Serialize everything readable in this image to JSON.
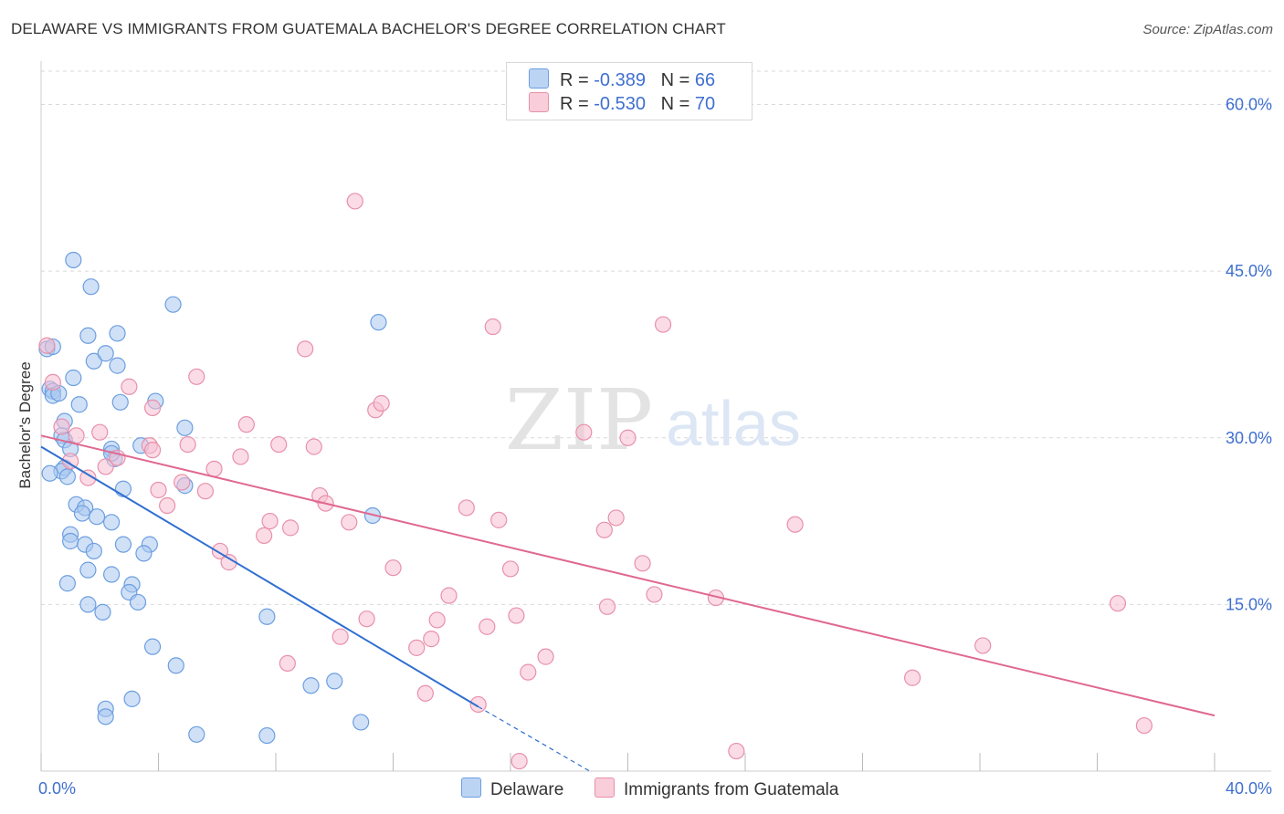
{
  "header": {
    "title": "DELAWARE VS IMMIGRANTS FROM GUATEMALA BACHELOR'S DEGREE CORRELATION CHART",
    "source": "Source: ZipAtlas.com"
  },
  "legend": {
    "rows": [
      {
        "r_label": "R =",
        "r_value": "-0.389",
        "n_label": "N =",
        "n_value": "66"
      },
      {
        "r_label": "R =",
        "r_value": "-0.530",
        "n_label": "N =",
        "n_value": "70"
      }
    ],
    "bottom": [
      "Delaware",
      "Immigrants from Guatemala"
    ]
  },
  "watermark": {
    "zip": "ZIP",
    "atlas": "atlas"
  },
  "colors": {
    "delaware_fill": "#a9c8f0",
    "delaware_stroke": "#6c9ee0",
    "delaware_line": "#2f6fd0",
    "guatemala_fill": "#f7c0d1",
    "guatemala_stroke": "#e890ab",
    "guatemala_line": "#e06890",
    "axis_text": "#3f6fd0",
    "grid": "#d9d9d9"
  },
  "chart_data": {
    "type": "scatter",
    "title": "DELAWARE VS IMMIGRANTS FROM GUATEMALA BACHELOR'S DEGREE CORRELATION CHART",
    "xlabel": "",
    "ylabel": "Bachelor's Degree",
    "xlim": [
      0,
      40
    ],
    "ylim": [
      0,
      63
    ],
    "x_tick_labels": [
      "0.0%",
      "40.0%"
    ],
    "y_ticks": [
      15,
      30,
      45,
      60
    ],
    "y_tick_labels": [
      "15.0%",
      "30.0%",
      "45.0%",
      "60.0%"
    ],
    "grid": true,
    "legend_position": "top-center",
    "series": [
      {
        "name": "Delaware",
        "r": -0.389,
        "n": 66,
        "trend": {
          "x": [
            0,
            14.9
          ],
          "y": [
            29.2,
            5.8
          ]
        },
        "trend_dashed": {
          "x": [
            14.9,
            18.7
          ],
          "y": [
            5.8,
            0
          ]
        },
        "points": [
          [
            0.2,
            38.0
          ],
          [
            0.4,
            38.2
          ],
          [
            0.3,
            34.4
          ],
          [
            0.4,
            34.2
          ],
          [
            0.4,
            33.8
          ],
          [
            0.8,
            31.5
          ],
          [
            0.7,
            30.2
          ],
          [
            0.8,
            29.8
          ],
          [
            1.0,
            29.0
          ],
          [
            0.8,
            27.3
          ],
          [
            0.7,
            27.0
          ],
          [
            0.3,
            26.8
          ],
          [
            0.9,
            26.5
          ],
          [
            1.1,
            35.4
          ],
          [
            1.3,
            33.0
          ],
          [
            1.6,
            39.2
          ],
          [
            1.8,
            36.9
          ],
          [
            2.2,
            37.6
          ],
          [
            2.6,
            36.5
          ],
          [
            2.6,
            39.4
          ],
          [
            2.7,
            33.2
          ],
          [
            3.9,
            33.3
          ],
          [
            2.4,
            29.0
          ],
          [
            3.4,
            29.3
          ],
          [
            2.5,
            28.1
          ],
          [
            2.8,
            25.4
          ],
          [
            4.9,
            25.7
          ],
          [
            1.2,
            24.0
          ],
          [
            1.5,
            23.7
          ],
          [
            1.4,
            23.2
          ],
          [
            1.9,
            22.9
          ],
          [
            2.4,
            22.4
          ],
          [
            1.0,
            21.3
          ],
          [
            1.0,
            20.7
          ],
          [
            1.5,
            20.4
          ],
          [
            1.8,
            19.8
          ],
          [
            2.8,
            20.4
          ],
          [
            3.7,
            20.4
          ],
          [
            3.5,
            19.6
          ],
          [
            1.6,
            18.1
          ],
          [
            2.4,
            17.7
          ],
          [
            0.9,
            16.9
          ],
          [
            3.1,
            16.8
          ],
          [
            3.0,
            16.1
          ],
          [
            3.3,
            15.2
          ],
          [
            1.6,
            15.0
          ],
          [
            2.1,
            14.3
          ],
          [
            7.7,
            13.9
          ],
          [
            3.8,
            11.2
          ],
          [
            4.6,
            9.5
          ],
          [
            9.2,
            7.7
          ],
          [
            10.0,
            8.1
          ],
          [
            2.2,
            5.6
          ],
          [
            2.2,
            4.9
          ],
          [
            3.1,
            6.5
          ],
          [
            5.3,
            3.3
          ],
          [
            7.7,
            3.2
          ],
          [
            10.9,
            4.4
          ],
          [
            1.1,
            46.0
          ],
          [
            1.7,
            43.6
          ],
          [
            4.5,
            42.0
          ],
          [
            11.5,
            40.4
          ],
          [
            4.9,
            30.9
          ],
          [
            11.3,
            23.0
          ],
          [
            0.6,
            34.0
          ],
          [
            2.4,
            28.6
          ]
        ]
      },
      {
        "name": "Immigrants from Guatemala",
        "r": -0.53,
        "n": 70,
        "trend": {
          "x": [
            0,
            40
          ],
          "y": [
            30.2,
            5.0
          ]
        },
        "points": [
          [
            0.2,
            38.3
          ],
          [
            0.4,
            35.0
          ],
          [
            0.7,
            31.0
          ],
          [
            1.2,
            30.2
          ],
          [
            1.0,
            27.9
          ],
          [
            1.6,
            26.4
          ],
          [
            2.0,
            30.5
          ],
          [
            2.2,
            27.4
          ],
          [
            2.6,
            28.2
          ],
          [
            3.0,
            34.6
          ],
          [
            3.7,
            29.3
          ],
          [
            3.8,
            28.9
          ],
          [
            3.8,
            32.7
          ],
          [
            4.0,
            25.3
          ],
          [
            4.3,
            23.9
          ],
          [
            4.8,
            26.0
          ],
          [
            5.0,
            29.4
          ],
          [
            5.3,
            35.5
          ],
          [
            5.6,
            25.2
          ],
          [
            5.9,
            27.2
          ],
          [
            6.1,
            19.8
          ],
          [
            6.4,
            18.8
          ],
          [
            6.8,
            28.3
          ],
          [
            7.0,
            31.2
          ],
          [
            7.6,
            21.2
          ],
          [
            7.8,
            22.5
          ],
          [
            8.1,
            29.4
          ],
          [
            8.5,
            21.9
          ],
          [
            8.4,
            9.7
          ],
          [
            9.0,
            38.0
          ],
          [
            9.3,
            29.2
          ],
          [
            9.5,
            24.8
          ],
          [
            9.7,
            24.1
          ],
          [
            10.2,
            12.1
          ],
          [
            10.5,
            22.4
          ],
          [
            10.7,
            51.3
          ],
          [
            11.1,
            13.7
          ],
          [
            11.4,
            32.5
          ],
          [
            11.6,
            33.1
          ],
          [
            12.0,
            18.3
          ],
          [
            12.8,
            11.1
          ],
          [
            13.1,
            7.0
          ],
          [
            13.3,
            11.9
          ],
          [
            13.5,
            13.6
          ],
          [
            13.9,
            15.8
          ],
          [
            14.5,
            23.7
          ],
          [
            14.9,
            6.0
          ],
          [
            15.2,
            13.0
          ],
          [
            15.4,
            40.0
          ],
          [
            15.6,
            22.6
          ],
          [
            16.0,
            18.2
          ],
          [
            16.2,
            14.0
          ],
          [
            16.3,
            0.9
          ],
          [
            16.6,
            8.9
          ],
          [
            17.2,
            10.3
          ],
          [
            18.5,
            30.5
          ],
          [
            19.2,
            21.7
          ],
          [
            19.3,
            14.8
          ],
          [
            19.6,
            22.8
          ],
          [
            20.0,
            30.0
          ],
          [
            20.5,
            18.7
          ],
          [
            20.9,
            15.9
          ],
          [
            21.2,
            40.2
          ],
          [
            23.0,
            15.6
          ],
          [
            23.7,
            1.8
          ],
          [
            25.7,
            22.2
          ],
          [
            29.7,
            8.4
          ],
          [
            32.1,
            11.3
          ],
          [
            36.7,
            15.1
          ],
          [
            37.6,
            4.1
          ]
        ]
      }
    ]
  }
}
